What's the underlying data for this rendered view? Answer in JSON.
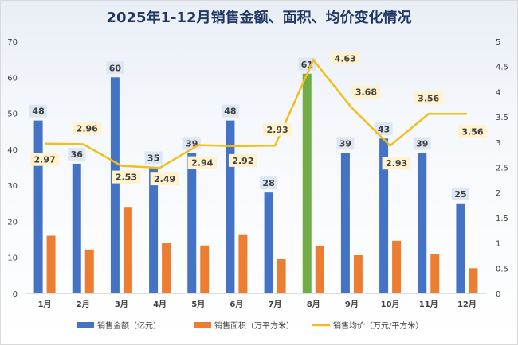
{
  "chart_data": {
    "type": "bar",
    "title": "2025年1-12月销售金额、面积、均价变化情况",
    "categories": [
      "1月",
      "2月",
      "3月",
      "4月",
      "5月",
      "6月",
      "7月",
      "8月",
      "9月",
      "10月",
      "11月",
      "12月"
    ],
    "series": [
      {
        "name": "销售金额（亿元）",
        "type": "bar",
        "axis": "left",
        "color": "#4472c4",
        "highlight_color": "#70ad47",
        "highlight_index": 7,
        "values": [
          48,
          36,
          60,
          35,
          39,
          48,
          28,
          61,
          39,
          43,
          39,
          25
        ]
      },
      {
        "name": "销售面积（万平方米）",
        "type": "bar",
        "axis": "left",
        "color": "#ed7d31",
        "values": [
          16,
          12.2,
          23.8,
          13.9,
          13.3,
          16.4,
          9.5,
          13.2,
          10.6,
          14.6,
          10.9,
          7
        ]
      },
      {
        "name": "销售均价（万元/平方米）",
        "type": "line",
        "axis": "right",
        "color": "#f2bf1a",
        "values": [
          2.97,
          2.96,
          2.53,
          2.49,
          2.94,
          2.92,
          2.93,
          4.63,
          3.68,
          2.93,
          3.56,
          3.56
        ]
      }
    ],
    "ylim": [
      0,
      70
    ],
    "yticks": [
      "0",
      "10",
      "20",
      "30",
      "40",
      "50",
      "60",
      "70"
    ],
    "y2lim": [
      0,
      5
    ],
    "y2ticks": [
      "0",
      "0.5",
      "1",
      "1.5",
      "2",
      "2.5",
      "3",
      "3.5",
      "4",
      "4.5",
      "5"
    ],
    "grid": false,
    "legend": "bottom"
  }
}
